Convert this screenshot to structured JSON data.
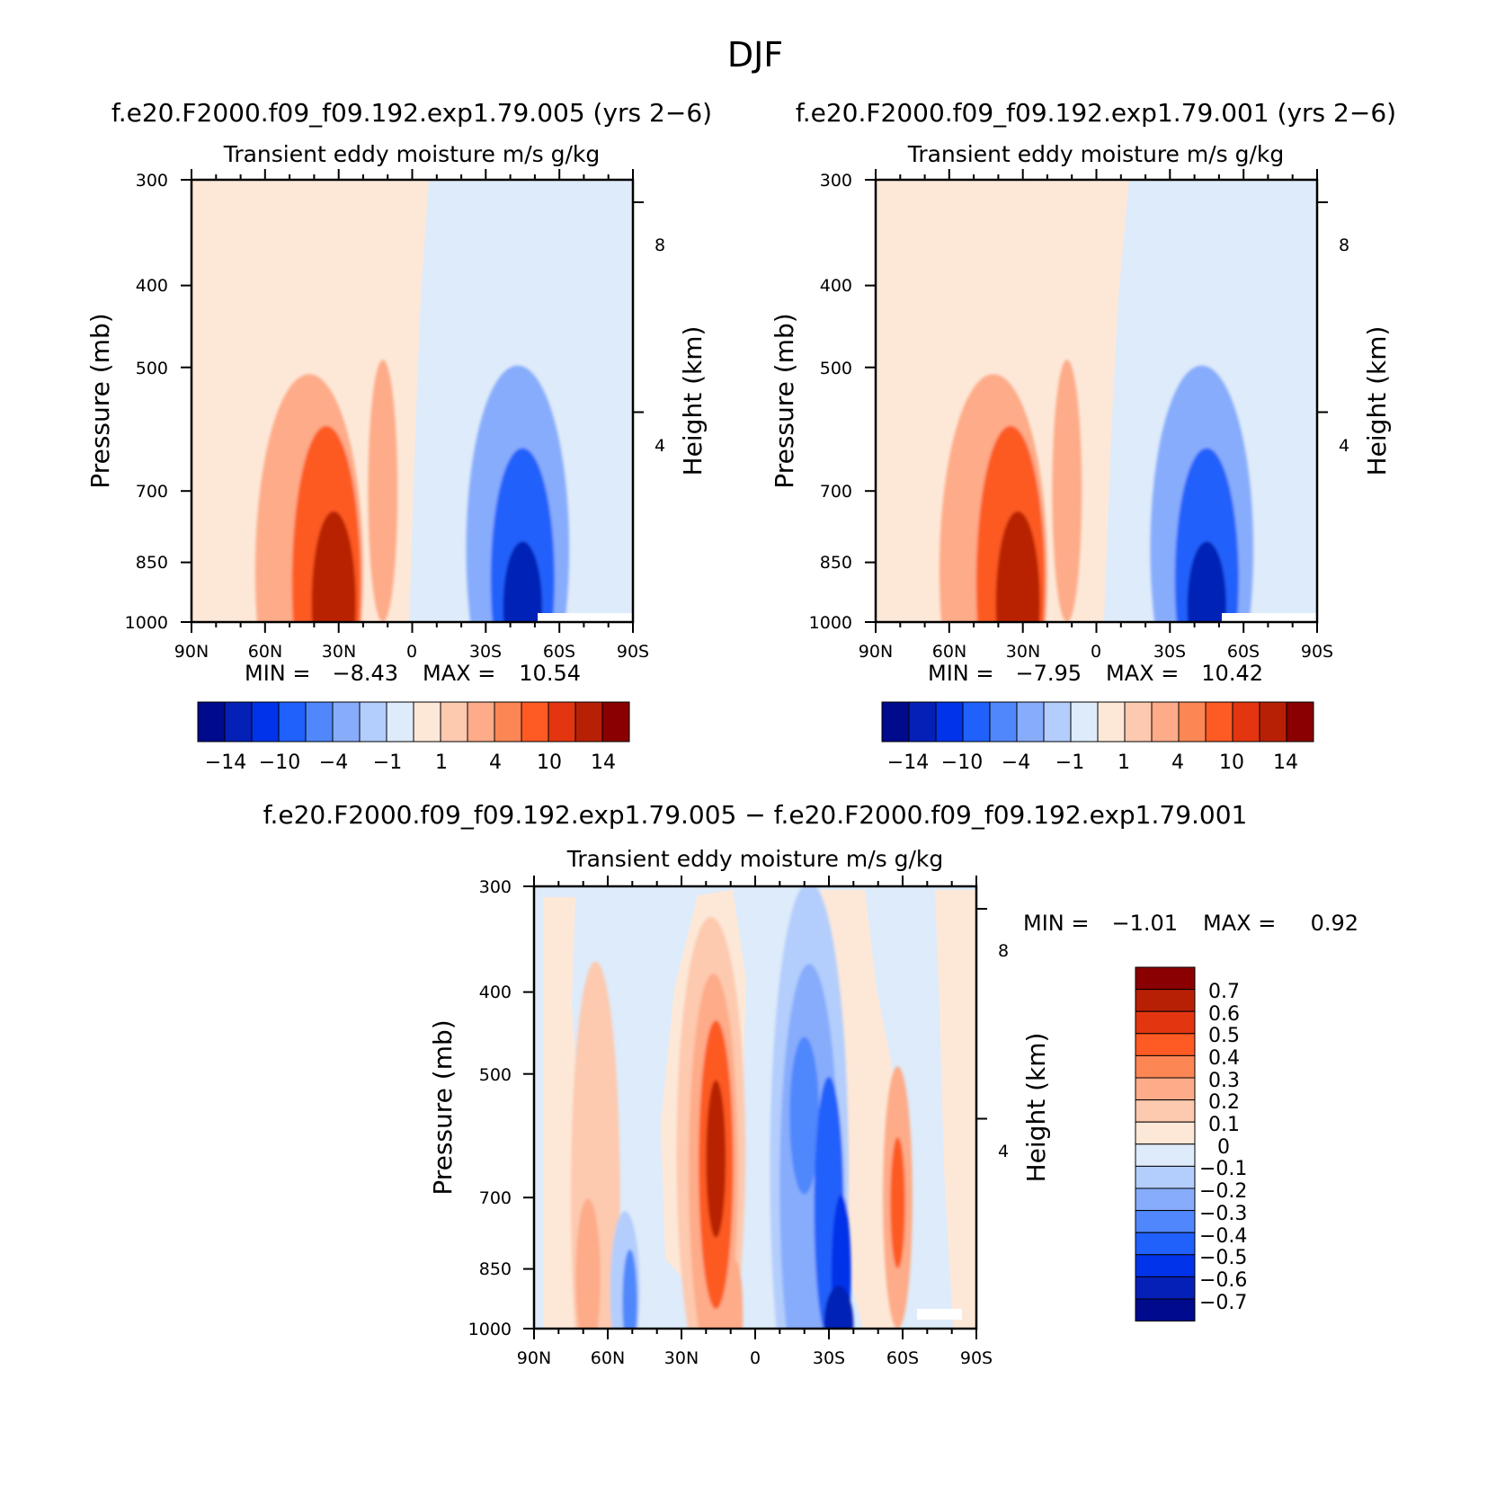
{
  "season": "DJF",
  "chart_data": [
    {
      "type": "heatmap",
      "case_title": "f.e20.F2000.f09_f09.192.exp1.79.005 (yrs 2−6)",
      "title": "Transient eddy moisture m/s g/kg",
      "ylabel": "Pressure (mb)",
      "ylabel_right": "Height (km)",
      "xticks": [
        "90N",
        "60N",
        "30N",
        "0",
        "30S",
        "60S",
        "90S"
      ],
      "xlim": [
        90,
        -90
      ],
      "yticks": [
        "300",
        "400",
        "500",
        "700",
        "850",
        "1000"
      ],
      "yticks_values": [
        300,
        400,
        500,
        700,
        850,
        1000
      ],
      "right_ticks": [
        "8",
        "4"
      ],
      "right_ticks_values": [
        8,
        4
      ],
      "ylim": [
        1000,
        300
      ],
      "min_label": "MIN =",
      "min_value": "−8.43",
      "max_label": "MAX =",
      "max_value": "10.54",
      "colorbar_labels": [
        "−14",
        "−10",
        "−4",
        "−1",
        "1",
        "4",
        "10",
        "14"
      ],
      "features": [
        {
          "sign": "pos",
          "level": 2,
          "lat": 42,
          "p": 870,
          "w": 22,
          "h": 7.5
        },
        {
          "sign": "pos",
          "level": 4,
          "lat": 35,
          "p": 900,
          "w": 14,
          "h": 6
        },
        {
          "sign": "pos",
          "level": 6,
          "lat": 32,
          "p": 950,
          "w": 9,
          "h": 3.5
        },
        {
          "sign": "pos",
          "level": 2,
          "lat": 12,
          "p": 700,
          "w": 6,
          "h": 5
        },
        {
          "sign": "neg",
          "level": 2,
          "lat": -43,
          "p": 820,
          "w": 21,
          "h": 7
        },
        {
          "sign": "neg",
          "level": 4,
          "lat": -45,
          "p": 890,
          "w": 13,
          "h": 5
        },
        {
          "sign": "neg",
          "level": 6,
          "lat": -45,
          "p": 960,
          "w": 8,
          "h": 2.5
        }
      ]
    },
    {
      "type": "heatmap",
      "case_title": "f.e20.F2000.f09_f09.192.exp1.79.001 (yrs 2−6)",
      "title": "Transient eddy moisture m/s g/kg",
      "ylabel": "Pressure (mb)",
      "ylabel_right": "Height (km)",
      "xticks": [
        "90N",
        "60N",
        "30N",
        "0",
        "30S",
        "60S",
        "90S"
      ],
      "xlim": [
        90,
        -90
      ],
      "yticks": [
        "300",
        "400",
        "500",
        "700",
        "850",
        "1000"
      ],
      "yticks_values": [
        300,
        400,
        500,
        700,
        850,
        1000
      ],
      "right_ticks": [
        "8",
        "4"
      ],
      "right_ticks_values": [
        8,
        4
      ],
      "ylim": [
        1000,
        300
      ],
      "min_label": "MIN =",
      "min_value": "−7.95",
      "max_label": "MAX =",
      "max_value": "10.42",
      "colorbar_labels": [
        "−14",
        "−10",
        "−4",
        "−1",
        "1",
        "4",
        "10",
        "14"
      ],
      "features": [
        {
          "sign": "pos",
          "level": 2,
          "lat": 42,
          "p": 870,
          "w": 22,
          "h": 7.5
        },
        {
          "sign": "pos",
          "level": 4,
          "lat": 35,
          "p": 900,
          "w": 14,
          "h": 6
        },
        {
          "sign": "pos",
          "level": 6,
          "lat": 32,
          "p": 950,
          "w": 9,
          "h": 3.5
        },
        {
          "sign": "pos",
          "level": 2,
          "lat": 12,
          "p": 700,
          "w": 6,
          "h": 5
        },
        {
          "sign": "neg",
          "level": 2,
          "lat": -43,
          "p": 820,
          "w": 21,
          "h": 7
        },
        {
          "sign": "neg",
          "level": 4,
          "lat": -45,
          "p": 890,
          "w": 13,
          "h": 5
        },
        {
          "sign": "neg",
          "level": 6,
          "lat": -45,
          "p": 960,
          "w": 8,
          "h": 2.5
        }
      ]
    },
    {
      "type": "heatmap",
      "case_title": "f.e20.F2000.f09_f09.192.exp1.79.005 − f.e20.F2000.f09_f09.192.exp1.79.001",
      "title": "Transient eddy moisture m/s g/kg",
      "ylabel": "Pressure (mb)",
      "ylabel_right": "Height (km)",
      "xticks": [
        "90N",
        "60N",
        "30N",
        "0",
        "30S",
        "60S",
        "90S"
      ],
      "xlim": [
        90,
        -90
      ],
      "yticks": [
        "300",
        "400",
        "500",
        "700",
        "850",
        "1000"
      ],
      "yticks_values": [
        300,
        400,
        500,
        700,
        850,
        1000
      ],
      "right_ticks": [
        "8",
        "4"
      ],
      "right_ticks_values": [
        8,
        4
      ],
      "ylim": [
        1000,
        300
      ],
      "min_label": "MIN =",
      "min_value": "−1.01",
      "max_label": "MAX =",
      "max_value": "0.92",
      "colorbar_labels": [
        "0.7",
        "0.6",
        "0.5",
        "0.4",
        "0.3",
        "0.2",
        "0.1",
        "0",
        "−0.1",
        "−0.2",
        "−0.3",
        "−0.4",
        "−0.5",
        "−0.6",
        "−0.7"
      ],
      "features": [
        {
          "sign": "pos",
          "level": 1,
          "lat": 65,
          "p": 700,
          "w": 10,
          "h": 9
        },
        {
          "sign": "pos",
          "level": 2,
          "lat": 68,
          "p": 870,
          "w": 5,
          "h": 3
        },
        {
          "sign": "pos",
          "level": 1,
          "lat": 18,
          "p": 620,
          "w": 14,
          "h": 9
        },
        {
          "sign": "pos",
          "level": 2,
          "lat": 17,
          "p": 650,
          "w": 10,
          "h": 7.5
        },
        {
          "sign": "pos",
          "level": 4,
          "lat": 16,
          "p": 640,
          "w": 7,
          "h": 5.5
        },
        {
          "sign": "pos",
          "level": 6,
          "lat": 16,
          "p": 630,
          "w": 4,
          "h": 3
        },
        {
          "sign": "pos",
          "level": 2,
          "lat": 8,
          "p": 960,
          "w": 3,
          "h": 2
        },
        {
          "sign": "pos",
          "level": 2,
          "lat": -58,
          "p": 700,
          "w": 6,
          "h": 5
        },
        {
          "sign": "pos",
          "level": 4,
          "lat": -58,
          "p": 710,
          "w": 3,
          "h": 2.5
        },
        {
          "sign": "neg",
          "level": 1,
          "lat": 53,
          "p": 900,
          "w": 6,
          "h": 3
        },
        {
          "sign": "neg",
          "level": 3,
          "lat": 51,
          "p": 930,
          "w": 3,
          "h": 2
        },
        {
          "sign": "neg",
          "level": 1,
          "lat": -22,
          "p": 650,
          "w": 16,
          "h": 11
        },
        {
          "sign": "neg",
          "level": 2,
          "lat": -22,
          "p": 680,
          "w": 12,
          "h": 8.5
        },
        {
          "sign": "neg",
          "level": 3,
          "lat": -20,
          "p": 560,
          "w": 6,
          "h": 3
        },
        {
          "sign": "neg",
          "level": 4,
          "lat": -30,
          "p": 720,
          "w": 6,
          "h": 5
        },
        {
          "sign": "neg",
          "level": 5,
          "lat": -35,
          "p": 860,
          "w": 4,
          "h": 3
        },
        {
          "sign": "neg",
          "level": 6,
          "lat": -34,
          "p": 990,
          "w": 6,
          "h": 1.5
        }
      ]
    }
  ]
}
